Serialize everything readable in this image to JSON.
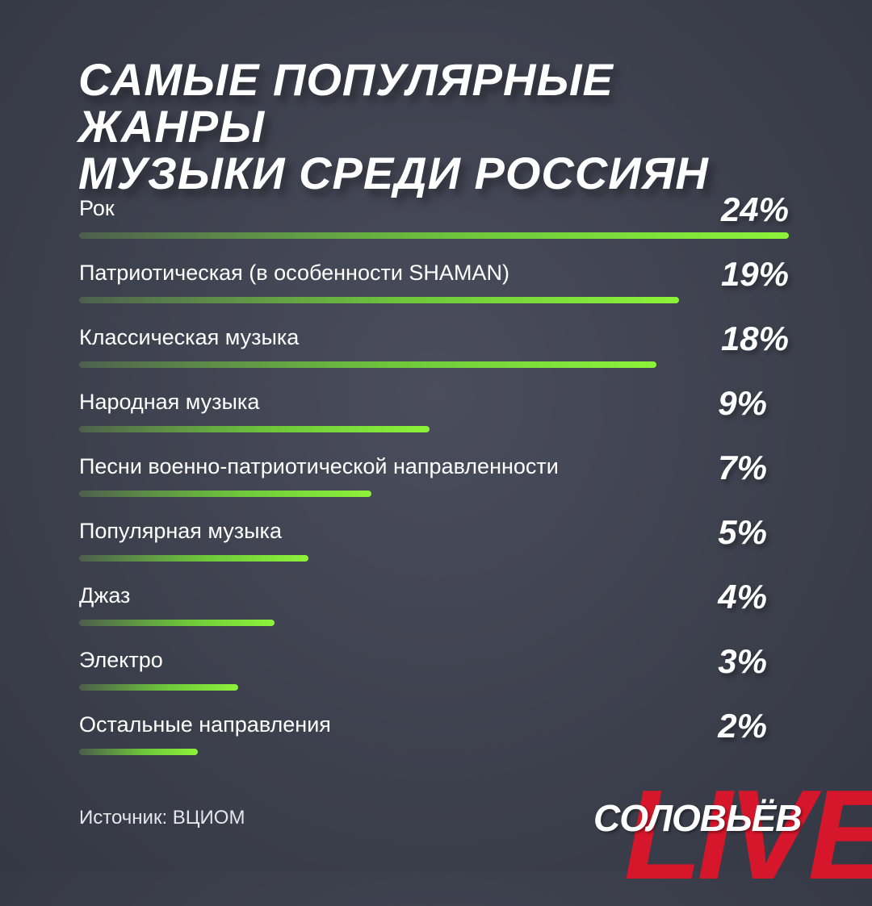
{
  "title_lines": [
    "САМЫЕ ПОПУЛЯРНЫЕ ЖАНРЫ",
    "МУЗЫКИ СРЕДИ РОССИЯН"
  ],
  "chart_data": {
    "type": "bar",
    "title": "САМЫЕ ПОПУЛЯРНЫЕ ЖАНРЫ МУЗЫКИ СРЕДИ РОССИЯН",
    "categories": [
      "Рок",
      "Патриотическая (в особенности SHAMAN)",
      "Классическая музыка",
      "Народная музыка",
      "Песни военно-патриотической направленности",
      "Популярная музыка",
      "Джаз",
      "Электро",
      "Остальные направления"
    ],
    "values": [
      24,
      19,
      18,
      9,
      7,
      5,
      4,
      3,
      2
    ],
    "value_labels": [
      "24%",
      "19%",
      "18%",
      "9%",
      "7%",
      "5%",
      "4%",
      "3%",
      "2%"
    ],
    "unit": "%",
    "orientation": "horizontal",
    "bar_color": "#8df239"
  },
  "source": "Источник: ВЦИОМ",
  "logo": {
    "name": "СОЛОВЬЁВ",
    "live": "LIVE",
    "live_color": "#d6162a"
  }
}
